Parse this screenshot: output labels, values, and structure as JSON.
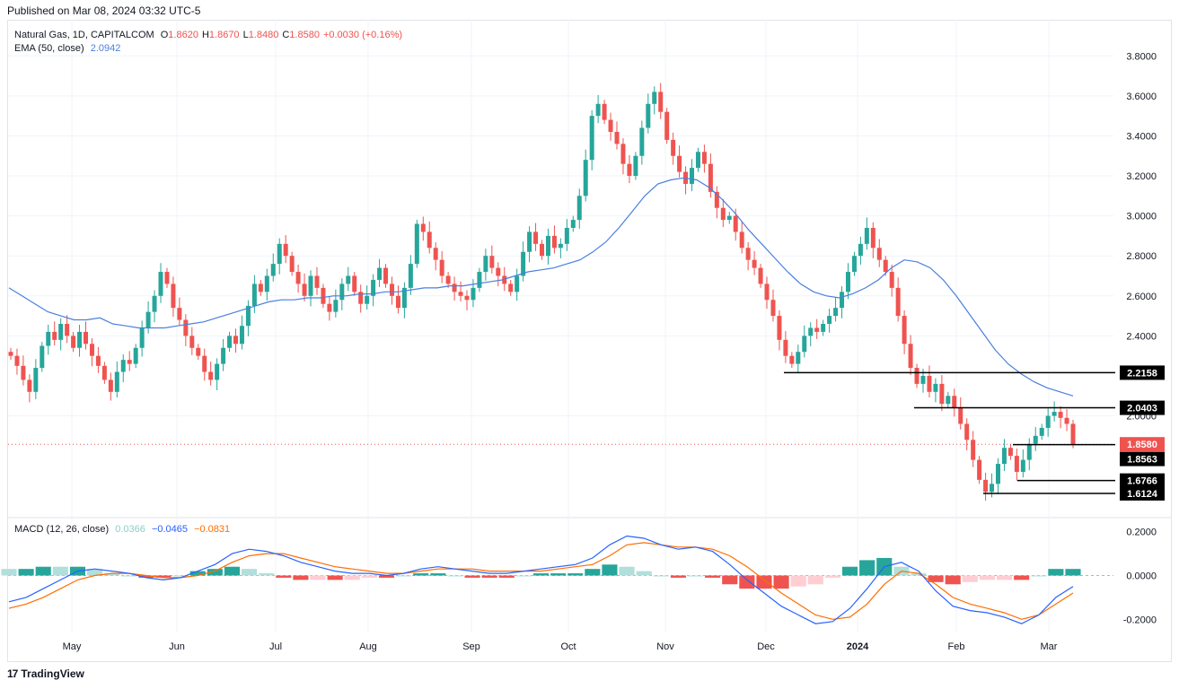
{
  "published": "Published on Mar 08, 2024 03:32 UTC-5",
  "legend": {
    "symbol": "Natural Gas, 1D, CAPITALCOM",
    "o_label": "O",
    "o_val": "1.8620",
    "h_label": "H",
    "h_val": "1.8670",
    "l_label": "L",
    "l_val": "1.8480",
    "c_label": "C",
    "c_val": "1.8580",
    "change": "+0.0030 (+0.16%)",
    "ema_label": "EMA (50, close)",
    "ema_val": "2.0942",
    "macd_label": "MACD (12, 26, close)",
    "macd_hist": "0.0366",
    "macd_line": "−0.0465",
    "macd_signal": "−0.0831"
  },
  "brand": "TradingView",
  "colors": {
    "up": "#26a69a",
    "down": "#ef5350",
    "ema": "#4a7fe0",
    "macd": "#2962ff",
    "signal": "#ff6d00",
    "grid": "#f0f3fa"
  },
  "chart_data": [
    {
      "type": "candlestick",
      "title": "Natural Gas, 1D, CAPITALCOM",
      "ylim": [
        1.5,
        3.9
      ],
      "y_ticks": [
        "3.8000",
        "3.6000",
        "3.4000",
        "3.2000",
        "3.0000",
        "2.8000",
        "2.6000",
        "2.4000",
        "2.0000"
      ],
      "x_ticks": [
        "May",
        "Jun",
        "Jul",
        "Aug",
        "Sep",
        "Oct",
        "Nov",
        "Dec",
        "2024",
        "Feb",
        "Mar"
      ],
      "close_series": [
        2.3,
        2.25,
        2.18,
        2.12,
        2.24,
        2.35,
        2.42,
        2.38,
        2.46,
        2.4,
        2.34,
        2.42,
        2.36,
        2.3,
        2.25,
        2.18,
        2.12,
        2.22,
        2.28,
        2.26,
        2.34,
        2.44,
        2.52,
        2.6,
        2.72,
        2.66,
        2.54,
        2.48,
        2.4,
        2.34,
        2.3,
        2.22,
        2.18,
        2.26,
        2.34,
        2.4,
        2.36,
        2.45,
        2.55,
        2.66,
        2.62,
        2.7,
        2.76,
        2.86,
        2.8,
        2.72,
        2.66,
        2.6,
        2.7,
        2.64,
        2.56,
        2.52,
        2.58,
        2.66,
        2.7,
        2.62,
        2.56,
        2.6,
        2.68,
        2.74,
        2.66,
        2.6,
        2.54,
        2.64,
        2.76,
        2.96,
        2.92,
        2.84,
        2.78,
        2.7,
        2.66,
        2.62,
        2.6,
        2.58,
        2.64,
        2.72,
        2.8,
        2.74,
        2.7,
        2.66,
        2.62,
        2.7,
        2.82,
        2.92,
        2.86,
        2.8,
        2.9,
        2.84,
        2.86,
        2.94,
        2.98,
        3.1,
        3.28,
        3.5,
        3.56,
        3.48,
        3.42,
        3.36,
        3.26,
        3.2,
        3.3,
        3.44,
        3.56,
        3.62,
        3.52,
        3.38,
        3.3,
        3.22,
        3.16,
        3.24,
        3.32,
        3.26,
        3.12,
        3.04,
        2.98,
        3.0,
        2.92,
        2.84,
        2.78,
        2.74,
        2.66,
        2.58,
        2.5,
        2.38,
        2.3,
        2.26,
        2.32,
        2.4,
        2.44,
        2.42,
        2.46,
        2.5,
        2.54,
        2.62,
        2.72,
        2.8,
        2.86,
        2.94,
        2.84,
        2.78,
        2.72,
        2.64,
        2.5,
        2.36,
        2.24,
        2.16,
        2.2,
        2.12,
        2.16,
        2.06,
        2.1,
        2.04,
        1.96,
        1.88,
        1.78,
        1.68,
        1.62,
        1.66,
        1.76,
        1.84,
        1.8,
        1.72,
        1.78,
        1.86,
        1.9,
        1.94,
        2.0,
        2.02,
        1.99,
        1.96,
        1.858
      ],
      "ema_series": [
        2.64,
        2.6,
        2.56,
        2.52,
        2.5,
        2.48,
        2.48,
        2.49,
        2.46,
        2.45,
        2.44,
        2.44,
        2.44,
        2.45,
        2.46,
        2.47,
        2.49,
        2.51,
        2.53,
        2.55,
        2.57,
        2.58,
        2.58,
        2.59,
        2.59,
        2.6,
        2.6,
        2.61,
        2.61,
        2.62,
        2.62,
        2.63,
        2.64,
        2.64,
        2.65,
        2.65,
        2.66,
        2.67,
        2.68,
        2.7,
        2.72,
        2.73,
        2.74,
        2.76,
        2.78,
        2.82,
        2.87,
        2.94,
        3.02,
        3.1,
        3.16,
        3.18,
        3.19,
        3.18,
        3.14,
        3.08,
        3.01,
        2.93,
        2.86,
        2.79,
        2.72,
        2.66,
        2.62,
        2.6,
        2.59,
        2.61,
        2.64,
        2.68,
        2.74,
        2.78,
        2.77,
        2.74,
        2.68,
        2.6,
        2.51,
        2.42,
        2.33,
        2.26,
        2.21,
        2.17,
        2.14,
        2.12,
        2.1
      ],
      "levels": [
        {
          "label": "2.2158",
          "value": 2.2158,
          "style": "dark"
        },
        {
          "label": "2.0403",
          "value": 2.0403,
          "style": "dark"
        },
        {
          "label": "1.8580",
          "value": 1.858,
          "style": "red"
        },
        {
          "label": "1.8563",
          "value": 1.8563,
          "style": "dark"
        },
        {
          "label": "1.6766",
          "value": 1.6766,
          "style": "dark"
        },
        {
          "label": "1.6124",
          "value": 1.6124,
          "style": "dark"
        }
      ]
    },
    {
      "type": "line",
      "title": "MACD (12, 26, close)",
      "ylim": [
        -0.26,
        0.26
      ],
      "y_ticks": [
        "0.2000",
        "0.0000",
        "-0.2000"
      ],
      "macd_series": [
        -0.12,
        -0.1,
        -0.06,
        -0.02,
        0.02,
        0.03,
        0.02,
        0.01,
        -0.01,
        -0.02,
        -0.01,
        0.02,
        0.05,
        0.1,
        0.12,
        0.11,
        0.09,
        0.06,
        0.04,
        0.02,
        0.01,
        0.01,
        0.0,
        0.01,
        0.03,
        0.04,
        0.03,
        0.02,
        0.01,
        0.01,
        0.02,
        0.03,
        0.04,
        0.05,
        0.08,
        0.14,
        0.18,
        0.17,
        0.14,
        0.12,
        0.13,
        0.11,
        0.05,
        -0.02,
        -0.08,
        -0.14,
        -0.18,
        -0.22,
        -0.21,
        -0.15,
        -0.06,
        0.04,
        0.06,
        0.02,
        -0.07,
        -0.14,
        -0.16,
        -0.17,
        -0.19,
        -0.22,
        -0.18,
        -0.1,
        -0.05
      ],
      "signal_series": [
        -0.15,
        -0.13,
        -0.1,
        -0.06,
        -0.02,
        0.0,
        0.01,
        0.01,
        0.0,
        -0.01,
        -0.01,
        0.0,
        0.02,
        0.06,
        0.09,
        0.1,
        0.1,
        0.08,
        0.06,
        0.04,
        0.03,
        0.02,
        0.01,
        0.01,
        0.02,
        0.03,
        0.03,
        0.03,
        0.02,
        0.02,
        0.02,
        0.02,
        0.03,
        0.04,
        0.05,
        0.09,
        0.14,
        0.15,
        0.14,
        0.13,
        0.13,
        0.12,
        0.09,
        0.04,
        -0.02,
        -0.08,
        -0.13,
        -0.18,
        -0.2,
        -0.19,
        -0.13,
        -0.04,
        0.02,
        0.01,
        -0.04,
        -0.1,
        -0.13,
        -0.15,
        -0.17,
        -0.2,
        -0.18,
        -0.13,
        -0.08
      ]
    }
  ]
}
